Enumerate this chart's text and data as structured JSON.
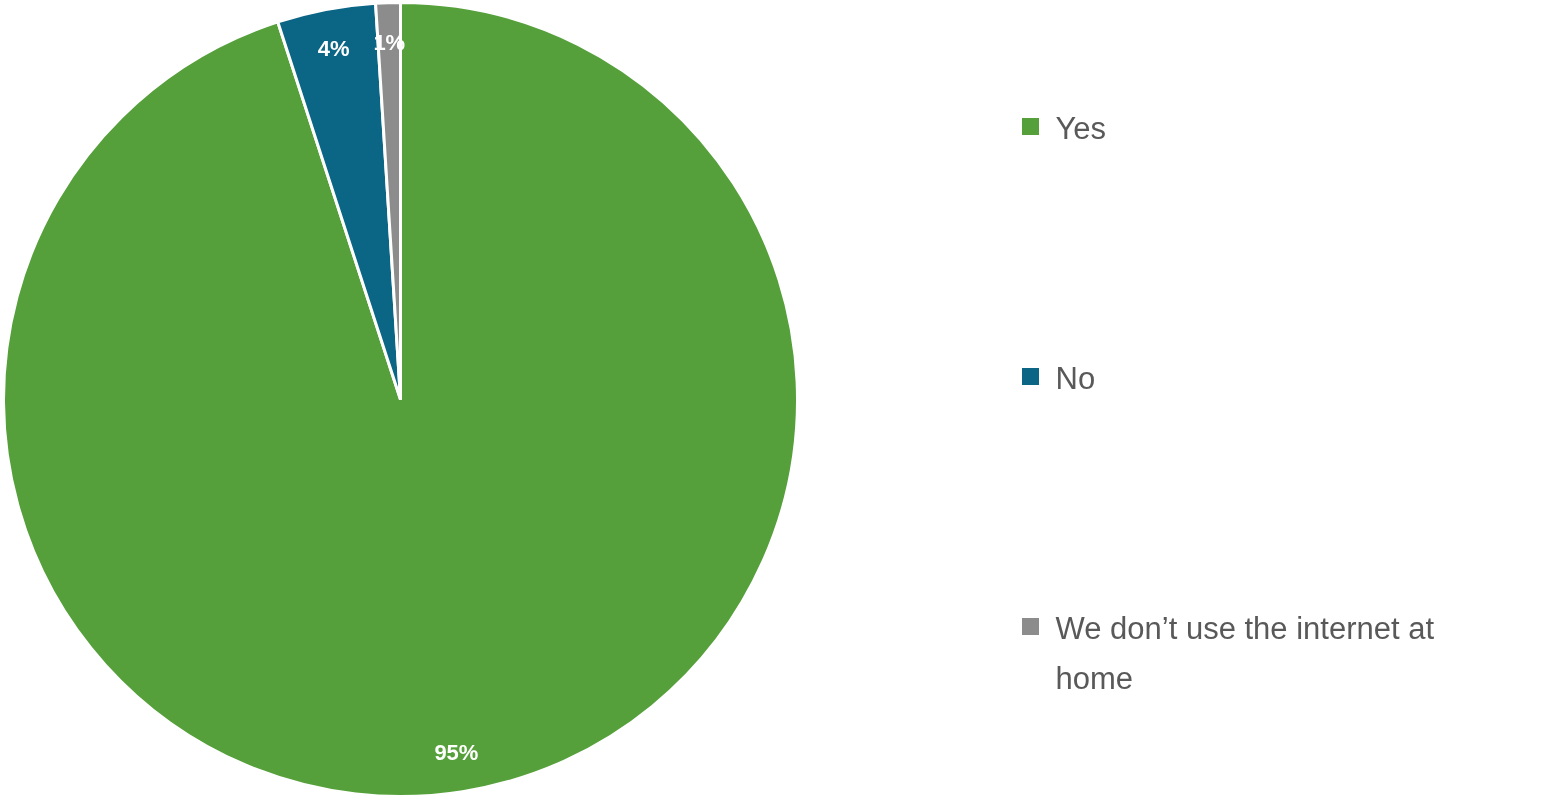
{
  "chart_data": {
    "type": "pie",
    "categories": [
      "Yes",
      "No",
      "We don’t use the internet at home"
    ],
    "values": [
      95,
      4,
      1
    ],
    "colors": [
      "#55a03a",
      "#0b6584",
      "#8c8c8c"
    ],
    "value_labels": [
      "95%",
      "4%",
      "1%"
    ],
    "legend": "right"
  }
}
